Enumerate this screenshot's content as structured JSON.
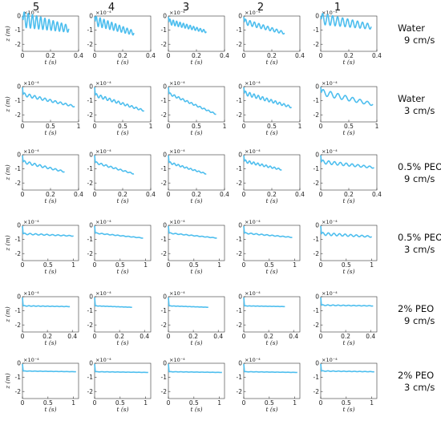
{
  "column_headers": [
    "5",
    "4",
    "3",
    "2",
    "1"
  ],
  "row_labels": [
    {
      "line1": "Water",
      "line2": "9 cm/s"
    },
    {
      "line1": "Water",
      "line2": "3 cm/s"
    },
    {
      "line1": "0.5% PEO",
      "line2": "9 cm/s"
    },
    {
      "line1": "0.5% PEO",
      "line2": "3 cm/s"
    },
    {
      "line1": "2% PEO",
      "line2": "9 cm/s"
    },
    {
      "line1": "2% PEO",
      "line2": "3 cm/s"
    }
  ],
  "axis_text": {
    "ylabel": "z (m)",
    "xlabel": "t (s)",
    "multiplier": "×10⁻⁴"
  },
  "colors": {
    "series": "#4DBEEE",
    "axes": "#333333"
  },
  "chart_data": {
    "type": "line",
    "layout": "grid 6 rows x 5 columns",
    "ylim": [
      -2.5,
      0
    ],
    "yticks": [
      -2,
      -1,
      0
    ],
    "ytick_labels": [
      "-2",
      "-1",
      "0"
    ],
    "y_multiplier": "×10⁻⁴",
    "rows": [
      {
        "xlim": [
          0,
          0.4
        ],
        "xticks": [
          0,
          0.2,
          0.4
        ],
        "xtick_labels": [
          "0",
          "0.2",
          "0.4"
        ]
      },
      {
        "xlim": [
          0,
          1
        ],
        "xticks": [
          0,
          0.5,
          1
        ],
        "xtick_labels": [
          "0",
          "0.5",
          "1"
        ]
      },
      {
        "xlim": [
          0,
          0.4
        ],
        "xticks": [
          0,
          0.2,
          0.4
        ],
        "xtick_labels": [
          "0",
          "0.2",
          "0.4"
        ]
      },
      {
        "xlim": [
          0,
          1.1
        ],
        "xticks": [
          0,
          0.5,
          1
        ],
        "xtick_labels": [
          "0",
          "0.5",
          "1"
        ]
      },
      {
        "xlim": [
          0,
          0.45
        ],
        "xticks": [
          0,
          0.2,
          0.4
        ],
        "xtick_labels": [
          "0",
          "0.2",
          "0.4"
        ]
      },
      {
        "xlim": [
          0,
          1.1
        ],
        "xticks": [
          0,
          0.5,
          1
        ],
        "xtick_labels": [
          "0",
          "0.5",
          "1"
        ]
      }
    ],
    "panels": [
      [
        {
          "column": "5",
          "t_end": 0.33,
          "z_start": -0.25,
          "z_end": -0.9,
          "osc_amp": 0.55,
          "cycles": 11,
          "note": "large oscillation"
        },
        {
          "column": "4",
          "t_end": 0.28,
          "z_start": -0.35,
          "z_end": -1.2,
          "osc_amp": 0.35,
          "cycles": 10
        },
        {
          "column": "3",
          "t_end": 0.27,
          "z_start": -0.4,
          "z_end": -1.1,
          "osc_amp": 0.2,
          "cycles": 11
        },
        {
          "column": "2",
          "t_end": 0.29,
          "z_start": -0.4,
          "z_end": -1.2,
          "osc_amp": 0.2,
          "cycles": 9
        },
        {
          "column": "1",
          "t_end": 0.36,
          "z_start": -0.2,
          "z_end": -0.75,
          "osc_amp": 0.4,
          "cycles": 10
        }
      ],
      [
        {
          "column": "5",
          "t_end": 0.93,
          "z_start": -0.55,
          "z_end": -1.4,
          "osc_amp": 0.12,
          "cycles": 10
        },
        {
          "column": "4",
          "t_end": 0.88,
          "z_start": -0.6,
          "z_end": -1.7,
          "osc_amp": 0.12,
          "cycles": 11
        },
        {
          "column": "3",
          "t_end": 0.85,
          "z_start": -0.5,
          "z_end": -1.95,
          "osc_amp": 0.08,
          "cycles": 11
        },
        {
          "column": "2",
          "t_end": 0.85,
          "z_start": -0.45,
          "z_end": -1.45,
          "osc_amp": 0.15,
          "cycles": 11
        },
        {
          "column": "1",
          "t_end": 0.93,
          "z_start": -0.4,
          "z_end": -1.25,
          "osc_amp": 0.22,
          "cycles": 7
        }
      ],
      [
        {
          "column": "5",
          "t_end": 0.3,
          "z_start": -0.5,
          "z_end": -1.2,
          "osc_amp": 0.1,
          "cycles": 8
        },
        {
          "column": "4",
          "t_end": 0.28,
          "z_start": -0.55,
          "z_end": -1.35,
          "osc_amp": 0.07,
          "cycles": 8
        },
        {
          "column": "3",
          "t_end": 0.27,
          "z_start": -0.55,
          "z_end": -1.35,
          "osc_amp": 0.07,
          "cycles": 9
        },
        {
          "column": "2",
          "t_end": 0.27,
          "z_start": -0.45,
          "z_end": -1.05,
          "osc_amp": 0.1,
          "cycles": 9
        },
        {
          "column": "1",
          "t_end": 0.38,
          "z_start": -0.5,
          "z_end": -0.9,
          "osc_amp": 0.13,
          "cycles": 9
        }
      ],
      [
        {
          "column": "5",
          "t_end": 1.0,
          "z_start": -0.6,
          "z_end": -0.75,
          "osc_amp": 0.05,
          "cycles": 9
        },
        {
          "column": "4",
          "t_end": 0.95,
          "z_start": -0.55,
          "z_end": -0.9,
          "osc_amp": 0.03,
          "cycles": 9
        },
        {
          "column": "3",
          "t_end": 0.95,
          "z_start": -0.55,
          "z_end": -0.9,
          "osc_amp": 0.03,
          "cycles": 9
        },
        {
          "column": "2",
          "t_end": 0.95,
          "z_start": -0.55,
          "z_end": -0.85,
          "osc_amp": 0.04,
          "cycles": 9
        },
        {
          "column": "1",
          "t_end": 1.0,
          "z_start": -0.6,
          "z_end": -0.8,
          "osc_amp": 0.1,
          "cycles": 9
        }
      ],
      [
        {
          "column": "5",
          "t_end": 0.38,
          "z_start": -0.65,
          "z_end": -0.7,
          "osc_amp": 0.02,
          "cycles": 10
        },
        {
          "column": "4",
          "t_end": 0.3,
          "z_start": -0.65,
          "z_end": -0.75,
          "osc_amp": 0.01,
          "cycles": 10
        },
        {
          "column": "3",
          "t_end": 0.32,
          "z_start": -0.65,
          "z_end": -0.75,
          "osc_amp": 0.01,
          "cycles": 10
        },
        {
          "column": "2",
          "t_end": 0.33,
          "z_start": -0.65,
          "z_end": -0.7,
          "osc_amp": 0.01,
          "cycles": 10
        },
        {
          "column": "1",
          "t_end": 0.42,
          "z_start": -0.6,
          "z_end": -0.65,
          "osc_amp": 0.03,
          "cycles": 10
        }
      ],
      [
        {
          "column": "5",
          "t_end": 1.05,
          "z_start": -0.55,
          "z_end": -0.6,
          "osc_amp": 0.01,
          "cycles": 10
        },
        {
          "column": "4",
          "t_end": 1.05,
          "z_start": -0.6,
          "z_end": -0.65,
          "osc_amp": 0.01,
          "cycles": 10
        },
        {
          "column": "3",
          "t_end": 1.05,
          "z_start": -0.6,
          "z_end": -0.65,
          "osc_amp": 0.01,
          "cycles": 10
        },
        {
          "column": "2",
          "t_end": 1.05,
          "z_start": -0.6,
          "z_end": -0.65,
          "osc_amp": 0.01,
          "cycles": 10
        },
        {
          "column": "1",
          "t_end": 1.05,
          "z_start": -0.55,
          "z_end": -0.6,
          "osc_amp": 0.02,
          "cycles": 10
        }
      ]
    ]
  }
}
